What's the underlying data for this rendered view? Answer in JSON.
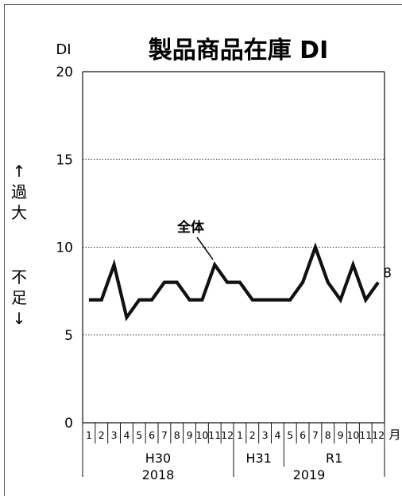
{
  "chart_data": {
    "type": "line",
    "title": "製品商品在庫 DI",
    "ylabel": "DI",
    "ylim": [
      0,
      20
    ],
    "yticks": [
      0,
      5,
      10,
      15,
      20
    ],
    "grid": "horizontal dotted at 5, 10, 15",
    "side_labels": {
      "excess": [
        "↑",
        "過",
        "大"
      ],
      "shortage": [
        "不",
        "足",
        "↓"
      ]
    },
    "month_unit": "月",
    "categories": [
      "1",
      "2",
      "3",
      "4",
      "5",
      "6",
      "7",
      "8",
      "9",
      "10",
      "11",
      "12",
      "1",
      "2",
      "3",
      "4",
      "5",
      "6",
      "7",
      "8",
      "9",
      "10",
      "11",
      "12"
    ],
    "era_groups": [
      {
        "label": "H30",
        "from": 0,
        "to": 11
      },
      {
        "label": "H31",
        "from": 12,
        "to": 15
      },
      {
        "label": "R1",
        "from": 16,
        "to": 23
      }
    ],
    "year_groups": [
      {
        "label": "2018",
        "from": 0,
        "to": 11
      },
      {
        "label": "2019",
        "from": 12,
        "to": 23
      }
    ],
    "series": [
      {
        "name": "全体",
        "values": [
          7,
          7,
          9,
          6,
          7,
          7,
          8,
          8,
          7,
          7,
          9,
          8,
          8,
          7,
          7,
          7,
          7,
          8,
          10,
          8,
          7,
          9,
          7,
          8
        ],
        "end_label": "8"
      }
    ]
  }
}
